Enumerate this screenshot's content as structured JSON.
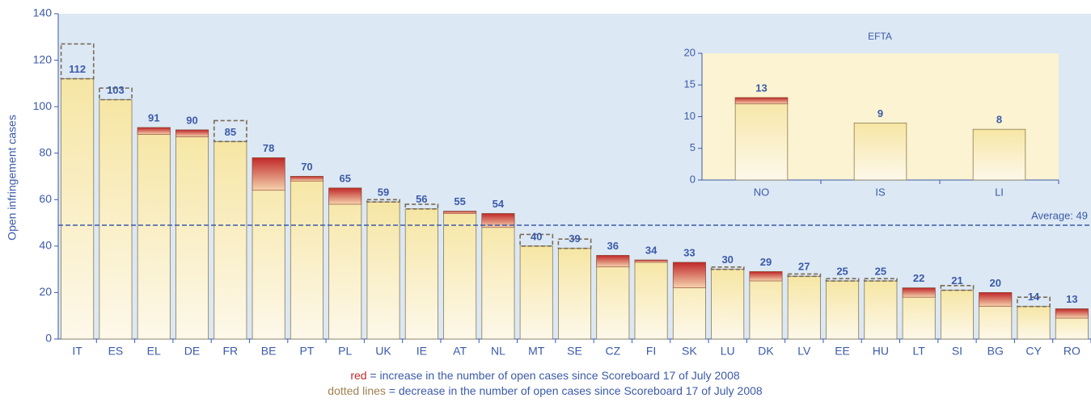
{
  "chart_data": [
    {
      "type": "bar",
      "y_label": "Open infringement cases",
      "categories": [
        "IT",
        "ES",
        "EL",
        "DE",
        "FR",
        "BE",
        "PT",
        "PL",
        "UK",
        "IE",
        "AT",
        "NL",
        "MT",
        "SE",
        "CZ",
        "FI",
        "SK",
        "LU",
        "DK",
        "LV",
        "EE",
        "HU",
        "LT",
        "SI",
        "BG",
        "CY",
        "RO"
      ],
      "values": [
        112,
        103,
        91,
        90,
        85,
        78,
        70,
        65,
        59,
        56,
        55,
        54,
        40,
        39,
        36,
        34,
        33,
        30,
        29,
        27,
        25,
        25,
        22,
        21,
        20,
        14,
        13
      ],
      "increase": [
        0,
        0,
        3,
        3,
        0,
        14,
        2,
        7,
        0,
        0,
        1,
        6,
        0,
        0,
        5,
        1,
        11,
        0,
        4,
        0,
        0,
        0,
        4,
        0,
        6,
        0,
        4
      ],
      "decrease": [
        15,
        5,
        0,
        0,
        9,
        0,
        0,
        0,
        1,
        2,
        0,
        0,
        5,
        4,
        0,
        0,
        0,
        1,
        0,
        1,
        1,
        1,
        0,
        2,
        0,
        4,
        0
      ],
      "average": {
        "value": 49,
        "label": "Average: 49"
      },
      "ylim": [
        0,
        140
      ],
      "yticks": [
        0,
        20,
        40,
        60,
        80,
        100,
        120,
        140
      ],
      "colors": {
        "bar": "#f6e7a6",
        "increase": "#c0282a",
        "average": "#3b5aa8",
        "label": "#3b5aa8"
      },
      "notes": [
        {
          "key": "red",
          "text": " = increase in the number of open cases since Scoreboard 17 of July 2008"
        },
        {
          "key": "dotted lines",
          "text": " = decrease in the number of open cases since  Scoreboard 17  of July 2008"
        }
      ]
    },
    {
      "type": "bar",
      "title": "EFTA",
      "categories": [
        "NO",
        "IS",
        "LI"
      ],
      "values": [
        13,
        9,
        8
      ],
      "increase": [
        1,
        0,
        0
      ],
      "decrease": [
        0,
        0,
        0
      ],
      "ylim": [
        0,
        20
      ],
      "yticks": [
        0,
        5,
        10,
        15,
        20
      ]
    }
  ]
}
